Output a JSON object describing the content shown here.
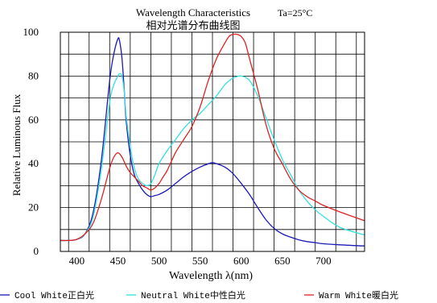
{
  "chart_data": {
    "type": "line",
    "title": "Wavelength Characteristics",
    "title_note": "Ta=25°C",
    "subtitle": "相对光谱分布曲线图",
    "xlabel": "Wavelength λ(nm)",
    "ylabel": "Relative Luminous Flux",
    "xlim": [
      380,
      750
    ],
    "ylim": [
      0,
      100
    ],
    "x_ticks": [
      400,
      450,
      500,
      550,
      600,
      650,
      700
    ],
    "y_ticks": [
      0,
      20,
      40,
      60,
      80,
      100
    ],
    "grid": true,
    "legend_position": "bottom",
    "series": [
      {
        "name": "Cool White正白光",
        "color": "#1a1ab4",
        "x": [
          380,
          390,
          400,
          410,
          420,
          430,
          440,
          445,
          450,
          452,
          455,
          458,
          460,
          465,
          470,
          475,
          480,
          485,
          490,
          495,
          500,
          510,
          520,
          530,
          540,
          550,
          560,
          565,
          570,
          580,
          590,
          600,
          610,
          620,
          630,
          640,
          650,
          660,
          670,
          680,
          690,
          700,
          720,
          750
        ],
        "y": [
          5,
          5,
          5.5,
          8,
          18,
          42,
          78,
          90,
          97,
          96,
          88,
          72,
          60,
          44,
          35,
          31,
          28,
          26,
          25,
          25.5,
          26,
          28,
          31,
          34,
          36.5,
          38.5,
          40,
          40.5,
          40,
          38.5,
          35.5,
          31,
          26,
          20,
          14.5,
          10.5,
          8,
          6.5,
          5.3,
          4.5,
          4,
          3.5,
          3,
          2.5
        ]
      },
      {
        "name": "Neutral White中性白光",
        "color": "#33e0e0",
        "x": [
          380,
          390,
          400,
          410,
          420,
          430,
          440,
          445,
          450,
          452,
          455,
          458,
          460,
          465,
          470,
          475,
          480,
          485,
          490,
          495,
          500,
          510,
          520,
          530,
          540,
          550,
          560,
          570,
          580,
          590,
          600,
          610,
          620,
          630,
          640,
          650,
          660,
          670,
          680,
          690,
          700,
          720,
          750
        ],
        "y": [
          5,
          5,
          5.5,
          8,
          16,
          38,
          68,
          76,
          80,
          81,
          80,
          72,
          62,
          48,
          38,
          33,
          31,
          30,
          31,
          35,
          40,
          46,
          51,
          56,
          60,
          63,
          67,
          71,
          76,
          79,
          80,
          78,
          71,
          61,
          51,
          42,
          35,
          28,
          23,
          19,
          16,
          11,
          7.5
        ]
      },
      {
        "name": "Warm White暖白光",
        "color": "#dd2222",
        "x": [
          380,
          390,
          400,
          410,
          420,
          430,
          440,
          445,
          450,
          455,
          460,
          465,
          470,
          475,
          480,
          485,
          490,
          495,
          500,
          505,
          510,
          520,
          530,
          540,
          550,
          560,
          570,
          580,
          585,
          590,
          595,
          600,
          605,
          610,
          620,
          630,
          640,
          650,
          660,
          670,
          680,
          690,
          700,
          720,
          750
        ],
        "y": [
          5,
          5,
          5.5,
          8,
          13,
          24,
          38,
          43,
          45,
          43,
          39,
          36,
          34,
          32,
          30,
          29,
          28,
          29,
          31,
          34,
          37,
          45,
          51,
          57,
          66,
          78,
          88,
          95,
          98,
          99,
          99,
          98,
          95,
          88,
          74,
          58,
          47,
          40,
          33,
          28,
          25,
          23,
          21,
          18,
          14
        ]
      }
    ]
  }
}
